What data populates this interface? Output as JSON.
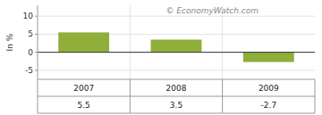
{
  "chart_data": {
    "type": "bar",
    "categories": [
      "2007",
      "2008",
      "2009"
    ],
    "values": [
      5.5,
      3.5,
      -2.7
    ],
    "color": "#8fae3a",
    "ylabel": "In %",
    "ylim": [
      -7.5,
      13
    ],
    "yticks": [
      -5,
      0,
      5,
      10
    ],
    "grid": true,
    "data_labels": true,
    "annotation": "© EconomyWatch.com"
  }
}
